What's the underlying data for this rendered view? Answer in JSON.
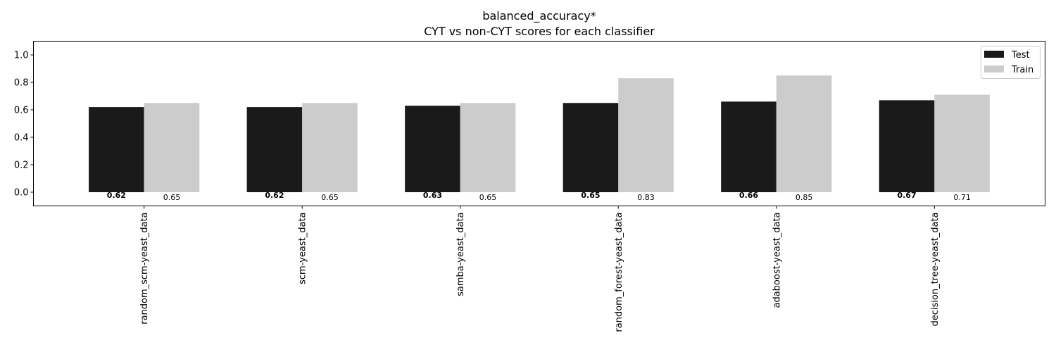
{
  "chart_data": {
    "type": "bar",
    "title": "balanced_accuracy*",
    "subtitle": "CYT vs non-CYT scores for each classifier",
    "categories": [
      "random_scm-yeast_data",
      "scm-yeast_data",
      "samba-yeast_data",
      "random_forest-yeast_data",
      "adaboost-yeast_data",
      "decision_tree-yeast_data"
    ],
    "series": [
      {
        "name": "Test",
        "values": [
          0.62,
          0.62,
          0.63,
          0.65,
          0.66,
          0.67
        ],
        "color": "#1a1a1a"
      },
      {
        "name": "Train",
        "values": [
          0.65,
          0.65,
          0.65,
          0.83,
          0.85,
          0.71
        ],
        "color": "#cccccc"
      }
    ],
    "ylim": [
      -0.1,
      1.1
    ],
    "yticks": [
      "0.0",
      "0.2",
      "0.4",
      "0.6",
      "0.8",
      "1.0"
    ],
    "legend_position": "top-right",
    "grid": false
  }
}
